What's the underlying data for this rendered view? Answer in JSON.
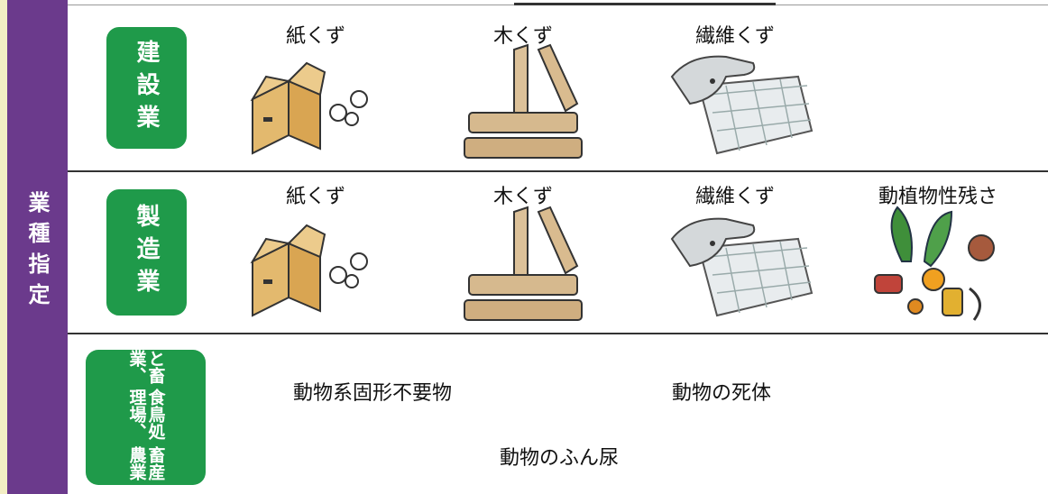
{
  "sidebar": {
    "label": "業種指定"
  },
  "rows": [
    {
      "industry": [
        "建設業"
      ],
      "items": [
        "紙くず",
        "木くず",
        "繊維くず"
      ]
    },
    {
      "industry": [
        "製造業"
      ],
      "items": [
        "紙くず",
        "木くず",
        "繊維くず",
        "動植物性残さ"
      ]
    },
    {
      "industry": [
        "と畜業、",
        "食鳥処理場、",
        "畜産農業"
      ],
      "items": [
        "動物系固形不要物",
        "動物の死体",
        "動物のふん尿"
      ]
    }
  ]
}
